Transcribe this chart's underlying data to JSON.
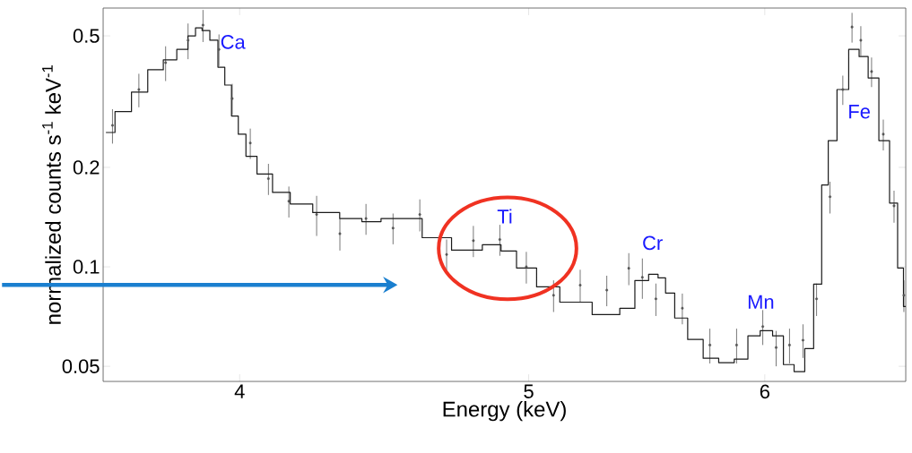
{
  "chart_data": {
    "type": "scatter",
    "xlabel": "Energy (keV)",
    "ylabel": "normalized counts s$^{-1}$ keV$^{-1}$",
    "log": "xy",
    "xlim": [
      3.6,
      6.69
    ],
    "ylim": [
      0.045,
      0.607
    ],
    "xticks": [
      4,
      5,
      6
    ],
    "yticks": [
      0.05,
      0.1,
      0.2,
      0.5
    ],
    "series": [
      {
        "color": "#555555",
        "x": [
          3.626,
          3.701,
          3.778,
          3.844,
          3.889,
          3.937,
          3.978,
          4.033,
          4.09,
          4.155,
          4.245,
          4.322,
          4.41,
          4.503,
          4.597,
          4.693,
          4.791,
          4.89,
          4.991,
          5.097,
          5.203,
          5.311,
          5.402,
          5.459,
          5.516,
          5.63,
          5.751,
          5.871,
          5.991,
          6.053,
          6.116,
          6.18,
          6.245,
          6.31,
          6.373,
          6.418,
          6.462,
          6.516,
          6.575,
          6.63,
          6.68
        ],
        "values": [
          0.268,
          0.344,
          0.415,
          0.485,
          0.539,
          0.455,
          0.323,
          0.237,
          0.185,
          0.158,
          0.144,
          0.126,
          0.14,
          0.131,
          0.144,
          0.109,
          0.12,
          0.121,
          0.1,
          0.082,
          0.088,
          0.085,
          0.099,
          0.093,
          0.08,
          0.075,
          0.058,
          0.058,
          0.066,
          0.057,
          0.058,
          0.06,
          0.08,
          0.163,
          0.344,
          0.532,
          0.485,
          0.39,
          0.252,
          0.153,
          0.082
        ],
        "errors": [
          0.032,
          0.04,
          0.05,
          0.06,
          0.06,
          0.05,
          0.035,
          0.025,
          0.02,
          0.017,
          0.02,
          0.014,
          0.015,
          0.014,
          0.016,
          0.012,
          0.013,
          0.013,
          0.011,
          0.009,
          0.01,
          0.009,
          0.011,
          0.013,
          0.009,
          0.008,
          0.007,
          0.007,
          0.008,
          0.007,
          0.007,
          0.007,
          0.009,
          0.018,
          0.035,
          0.055,
          0.05,
          0.04,
          0.027,
          0.017,
          0.009
        ]
      },
      {
        "type": "step",
        "color": "#1a1a1a",
        "x": [
          3.608,
          3.659,
          3.701,
          3.752,
          3.791,
          3.831,
          3.857,
          3.876,
          3.896,
          3.923,
          3.945,
          3.965,
          3.986,
          4.006,
          4.033,
          4.075,
          4.131,
          4.188,
          4.277,
          4.366,
          4.426,
          4.497,
          4.566,
          4.645,
          4.778,
          4.871,
          4.918,
          4.989,
          5.073,
          5.171,
          5.333,
          5.396,
          5.459,
          5.512,
          5.539,
          5.576,
          5.618,
          5.689,
          5.754,
          5.827,
          5.894,
          5.951,
          6.007,
          6.066,
          6.108,
          6.167,
          6.21,
          6.252,
          6.287,
          6.316,
          6.373,
          6.431,
          6.476,
          6.521,
          6.584,
          6.63,
          6.667,
          6.69
        ],
        "values": [
          0.255,
          0.295,
          0.338,
          0.395,
          0.423,
          0.455,
          0.5,
          0.529,
          0.519,
          0.485,
          0.402,
          0.355,
          0.286,
          0.252,
          0.216,
          0.191,
          0.168,
          0.155,
          0.146,
          0.14,
          0.137,
          0.14,
          0.14,
          0.1225,
          0.1123,
          0.1166,
          0.1116,
          0.0992,
          0.087,
          0.0782,
          0.0717,
          0.0749,
          0.0909,
          0.0949,
          0.0926,
          0.0833,
          0.07,
          0.0603,
          0.0529,
          0.0513,
          0.0526,
          0.0618,
          0.0641,
          0.0618,
          0.0506,
          0.0482,
          0.0566,
          0.0886,
          0.177,
          0.241,
          0.344,
          0.455,
          0.433,
          0.373,
          0.241,
          0.156,
          0.0992,
          0.0759
        ]
      }
    ],
    "annotations": [
      "Ca",
      "Ti",
      "Cr",
      "Mn",
      "Fe"
    ]
  }
}
